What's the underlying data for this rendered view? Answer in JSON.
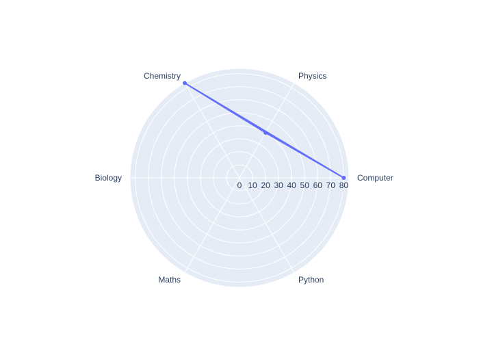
{
  "chart_data": {
    "type": "radar",
    "categories": [
      "Computer",
      "Physics",
      "Chemistry",
      "Biology",
      "Maths",
      "Python"
    ],
    "series": [
      {
        "values": [
          80,
          40,
          84,
          null,
          null,
          null
        ],
        "color": "#636efa"
      }
    ],
    "radial_ticks": [
      0,
      10,
      20,
      30,
      40,
      50,
      60,
      70,
      80
    ],
    "radial_range": [
      0,
      84
    ],
    "grid": true,
    "background_color": "#e5ecf6",
    "grid_color": "#ffffff"
  }
}
